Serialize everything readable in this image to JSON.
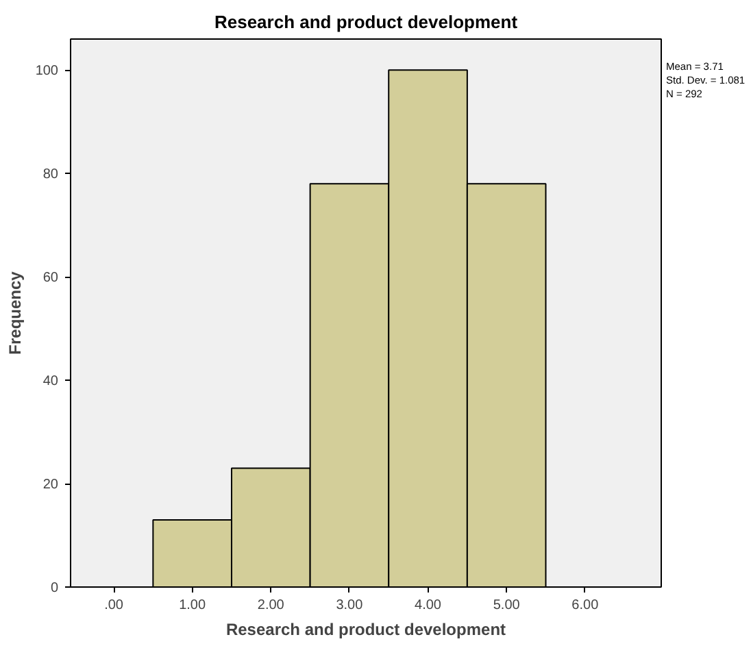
{
  "chart_data": {
    "type": "histogram",
    "title": "Research and product development",
    "xlabel": "Research and product development",
    "ylabel": "Frequency",
    "bins": [
      0.5,
      1.5,
      2.5,
      3.5,
      4.5,
      5.5
    ],
    "values": [
      13,
      23,
      78,
      100,
      78
    ],
    "color": "#d3ce99",
    "xlim": [
      -0.55,
      6.97
    ],
    "ylim": [
      0,
      106
    ],
    "xticks": [
      {
        "value": 0,
        "label": ".00"
      },
      {
        "value": 1,
        "label": "1.00"
      },
      {
        "value": 2,
        "label": "2.00"
      },
      {
        "value": 3,
        "label": "3.00"
      },
      {
        "value": 4,
        "label": "4.00"
      },
      {
        "value": 5,
        "label": "5.00"
      },
      {
        "value": 6,
        "label": "6.00"
      }
    ],
    "yticks": [
      0,
      20,
      40,
      60,
      80,
      100
    ],
    "annotations": [
      "Mean = 3.71",
      "Std. Dev. = 1.081",
      "N = 292"
    ],
    "grid": false
  }
}
